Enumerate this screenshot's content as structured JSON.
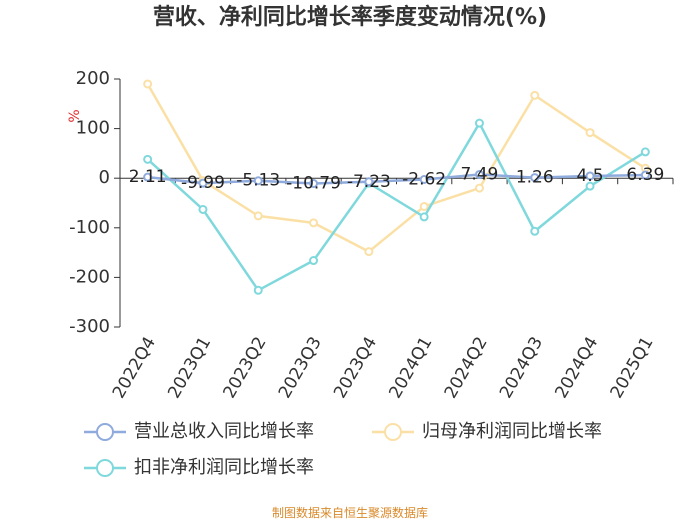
{
  "chart_data": {
    "type": "line",
    "title": "营收、净利同比增长率季度变动情况(%)",
    "ylabel": "%",
    "ylim": [
      -300,
      200
    ],
    "yticks": [
      "200",
      "100",
      "0",
      "-100",
      "-200",
      "-300"
    ],
    "categories": [
      "2022Q4",
      "2023Q1",
      "2023Q2",
      "2023Q3",
      "2023Q4",
      "2024Q1",
      "2024Q2",
      "2024Q3",
      "2024Q4",
      "2025Q1"
    ],
    "series": [
      {
        "name": "营业总收入同比增长率",
        "color": "#8faadc",
        "values": [
          2.11,
          -9.99,
          -5.13,
          -10.79,
          -7.23,
          -2.62,
          7.49,
          1.26,
          4.5,
          6.39
        ],
        "labels": [
          "2.11",
          "-9.99",
          "-5.13",
          "-10.79",
          "-7.23",
          "-2.62",
          "7.49",
          "1.26",
          "4.5",
          "6.39"
        ]
      },
      {
        "name": "归母净利润同比增长率",
        "color": "#fbe0a6",
        "values": [
          190,
          -5,
          -76,
          -90,
          -148,
          -57,
          -20,
          167,
          92,
          20
        ]
      },
      {
        "name": "扣非净利润同比增长率",
        "color": "#7fd8dc",
        "values": [
          38,
          -63,
          -226,
          -166,
          -10,
          -78,
          111,
          -107,
          -16,
          53
        ]
      }
    ],
    "grid": false,
    "legend": "bottom"
  },
  "source_text": "制图数据来自恒生聚源数据库"
}
